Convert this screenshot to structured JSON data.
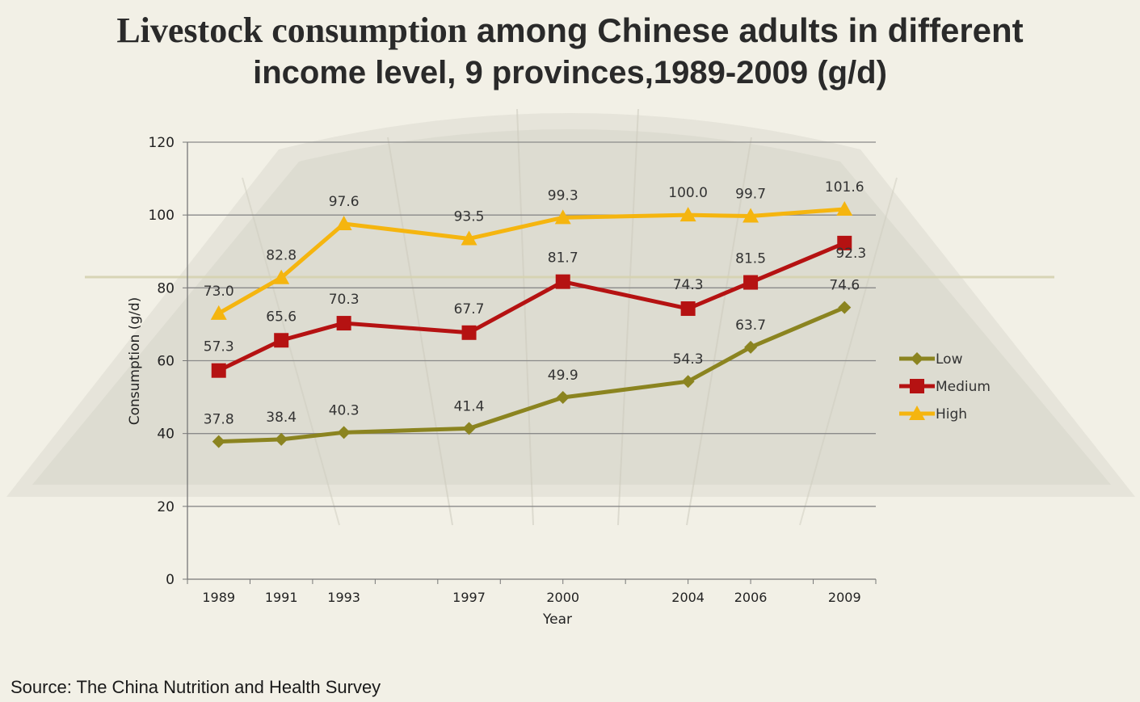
{
  "title": {
    "part1": "Livestock consumption",
    "part2": " among Chinese adults in different",
    "line2": "income level, 9 provinces,1989-2009 (g/d)"
  },
  "source": "Source: The China Nutrition and Health Survey",
  "chart_data": {
    "type": "line",
    "title": "Livestock consumption among Chinese adults in different income level, 9 provinces,1989-2009 (g/d)",
    "xlabel": "Year",
    "ylabel": "Consumption (g/d)",
    "x": [
      1989,
      1991,
      1993,
      1997,
      2000,
      2004,
      2006,
      2009
    ],
    "x_tick_labels": [
      "1989",
      "1991",
      "1993",
      "1997",
      "2000",
      "2004",
      "2006",
      "2009"
    ],
    "ylim": [
      0,
      120
    ],
    "y_ticks": [
      0,
      20,
      40,
      60,
      80,
      100,
      120
    ],
    "grid": "horizontal",
    "legend_position": "right",
    "series": [
      {
        "name": "Low",
        "marker": "diamond",
        "color": "#8b8420",
        "values": [
          37.8,
          38.4,
          40.3,
          41.4,
          49.9,
          54.3,
          63.7,
          74.6
        ],
        "labels": [
          "37.8",
          "38.4",
          "40.3",
          "41.4",
          "49.9",
          "54.3",
          "63.7",
          "74.6"
        ]
      },
      {
        "name": "Medium",
        "marker": "square",
        "color": "#b51212",
        "values": [
          57.3,
          65.6,
          70.3,
          67.7,
          81.7,
          74.3,
          81.5,
          92.3
        ],
        "labels": [
          "57.3",
          "65.6",
          "70.3",
          "67.7",
          "81.7",
          "74.3",
          "81.5",
          "92.3"
        ]
      },
      {
        "name": "High",
        "marker": "triangle",
        "color": "#f5b50f",
        "values": [
          73.0,
          82.8,
          97.6,
          93.5,
          99.3,
          100.0,
          99.7,
          101.6
        ],
        "labels": [
          "73.0",
          "82.8",
          "97.6",
          "93.5",
          "99.3",
          "100.0",
          "99.7",
          "101.6"
        ]
      }
    ]
  }
}
